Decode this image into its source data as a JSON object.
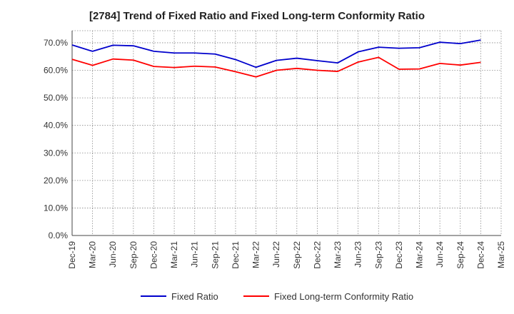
{
  "chart_data": {
    "type": "line",
    "title": "[2784]  Trend of Fixed Ratio and Fixed Long-term Conformity Ratio",
    "xlabel": "",
    "ylabel": "",
    "categories": [
      "Dec-19",
      "Mar-20",
      "Jun-20",
      "Sep-20",
      "Dec-20",
      "Mar-21",
      "Jun-21",
      "Sep-21",
      "Dec-21",
      "Mar-22",
      "Jun-22",
      "Sep-22",
      "Dec-22",
      "Mar-23",
      "Jun-23",
      "Sep-23",
      "Dec-23",
      "Mar-24",
      "Jun-24",
      "Sep-24",
      "Dec-24",
      "Mar-25"
    ],
    "ylim": [
      0,
      70
    ],
    "yticks": [
      0,
      10,
      20,
      30,
      40,
      50,
      60,
      70
    ],
    "ytick_labels": [
      "0.0%",
      "10.0%",
      "20.0%",
      "30.0%",
      "40.0%",
      "50.0%",
      "60.0%",
      "70.0%"
    ],
    "grid": true,
    "legend_position": "bottom",
    "series": [
      {
        "name": "Fixed Ratio",
        "color": "#0000cc",
        "values": [
          69.2,
          66.9,
          69.1,
          68.9,
          66.9,
          66.3,
          66.3,
          65.9,
          63.9,
          61.1,
          63.6,
          64.4,
          63.5,
          62.7,
          66.7,
          68.4,
          68.0,
          68.2,
          70.2,
          69.7,
          71.0,
          null
        ]
      },
      {
        "name": "Fixed Long-term Conformity Ratio",
        "color": "#ff0000",
        "values": [
          64.0,
          61.8,
          64.1,
          63.7,
          61.4,
          61.0,
          61.5,
          61.2,
          59.5,
          57.6,
          60.0,
          60.7,
          60.0,
          59.6,
          63.0,
          64.7,
          60.4,
          60.5,
          62.5,
          61.9,
          62.9,
          null
        ]
      }
    ]
  }
}
